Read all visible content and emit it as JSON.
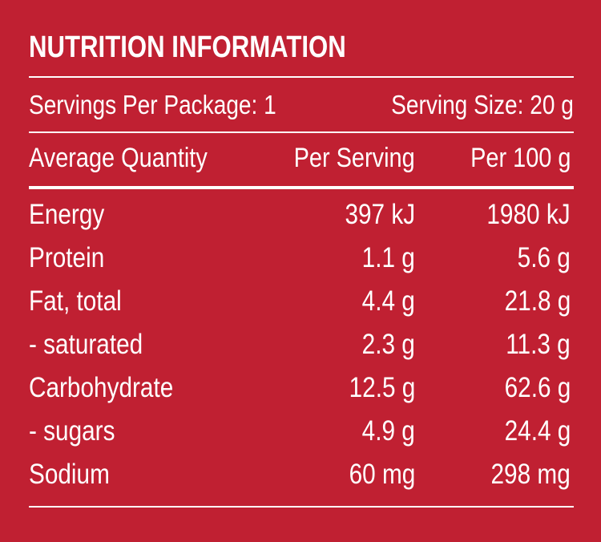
{
  "title": "NUTRITION INFORMATION",
  "servings_per_package": "Servings Per Package: 1",
  "serving_size": "Serving Size: 20 g",
  "headers": {
    "quantity": "Average Quantity",
    "per_serving": "Per Serving",
    "per_100g": "Per 100 g"
  },
  "rows": [
    {
      "name": "Energy",
      "per_serving": "397 kJ",
      "per_100g": "1980 kJ"
    },
    {
      "name": "Protein",
      "per_serving": "1.1 g",
      "per_100g": "5.6 g"
    },
    {
      "name": "Fat, total",
      "per_serving": "4.4 g",
      "per_100g": "21.8 g"
    },
    {
      "name": "- saturated",
      "per_serving": "2.3 g",
      "per_100g": "11.3 g"
    },
    {
      "name": "Carbohydrate",
      "per_serving": "12.5 g",
      "per_100g": "62.6 g"
    },
    {
      "name": "- sugars",
      "per_serving": "4.9 g",
      "per_100g": "24.4 g"
    },
    {
      "name": "Sodium",
      "per_serving": "60 mg",
      "per_100g": "298 mg"
    }
  ],
  "colors": {
    "background": "#c02032",
    "text": "#ffffff"
  }
}
